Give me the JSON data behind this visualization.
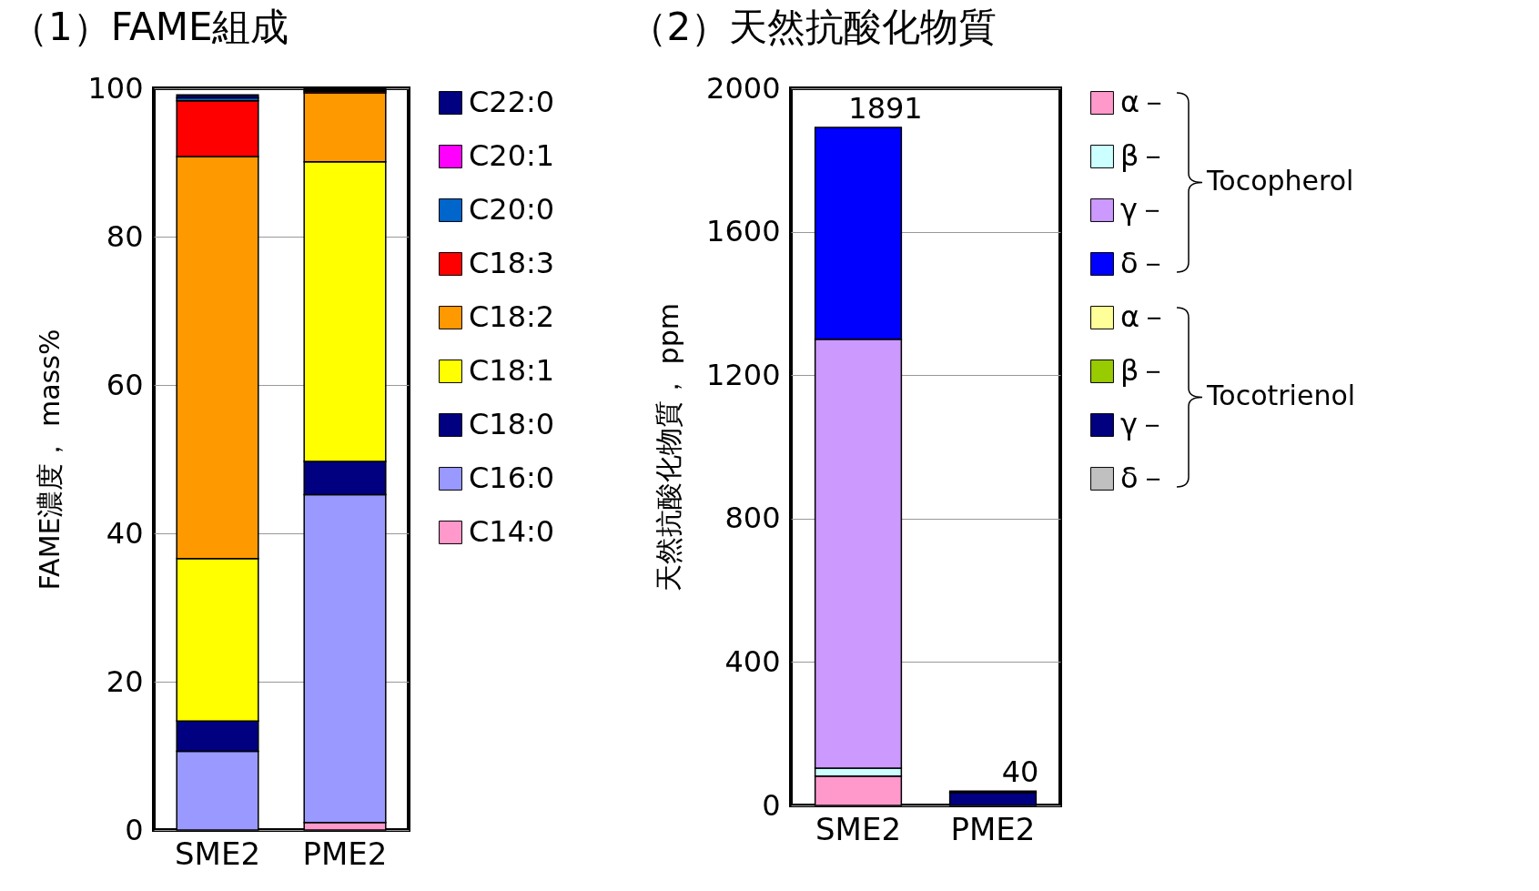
{
  "chart_data": [
    {
      "type": "bar",
      "title": "（1）FAME組成",
      "ylabel": "FAME濃度，  mass%",
      "categories": [
        "SME2",
        "PME2"
      ],
      "stacked": true,
      "ylim": [
        0,
        100
      ],
      "yticks": [
        0,
        20,
        40,
        60,
        80,
        100
      ],
      "grid": "y",
      "legend": "right",
      "series": [
        {
          "name": "C14:0",
          "color": "#ff99cc",
          "values": [
            0,
            1.0
          ]
        },
        {
          "name": "C16:0",
          "color": "#9999ff",
          "values": [
            10.6,
            44.2
          ]
        },
        {
          "name": "C18:0",
          "color": "#000080",
          "values": [
            4.1,
            4.5
          ]
        },
        {
          "name": "C18:1",
          "color": "#ffff00",
          "values": [
            21.9,
            40.4
          ]
        },
        {
          "name": "C18:2",
          "color": "#ff9900",
          "values": [
            54.2,
            9.3
          ]
        },
        {
          "name": "C18:3",
          "color": "#ff0000",
          "values": [
            7.5,
            0.2
          ]
        },
        {
          "name": "C20:0",
          "color": "#0066cc",
          "values": [
            0.4,
            0.2
          ]
        },
        {
          "name": "C20:1",
          "color": "#ff00ff",
          "values": [
            null,
            0
          ]
        },
        {
          "name": "C22:0",
          "color": "#000080",
          "values": [
            0.4,
            0.1
          ]
        }
      ]
    },
    {
      "type": "bar",
      "title": "（2）天然抗酸化物質",
      "ylabel": "天然抗酸化物質，  ppm",
      "categories": [
        "SME2",
        "PME2"
      ],
      "stacked": true,
      "ylim": [
        0,
        2000
      ],
      "yticks": [
        0,
        400,
        800,
        1200,
        1600,
        2000
      ],
      "grid": "y",
      "legend": "right",
      "totals": [
        "1891",
        "40"
      ],
      "annotations": [
        "Tocopherol",
        "Tocotrienol"
      ],
      "series": [
        {
          "name": "α－",
          "color": "#ff99cc",
          "values": [
            82,
            0
          ]
        },
        {
          "name": "β－",
          "color": "#ccffff",
          "values": [
            22,
            0
          ]
        },
        {
          "name": "γ－",
          "color": "#cc99ff",
          "values": [
            1196,
            0
          ]
        },
        {
          "name": "δ－",
          "color": "#0000ff",
          "values": [
            591,
            0
          ]
        },
        {
          "name": "α－",
          "color": "#ffff99",
          "values": [
            0,
            0
          ]
        },
        {
          "name": "β－",
          "color": "#99cc00",
          "values": [
            0,
            0
          ]
        },
        {
          "name": "γ－",
          "color": "#000080",
          "values": [
            0,
            36
          ]
        },
        {
          "name": "δ－",
          "color": "#c0c0c0",
          "values": [
            0,
            4
          ]
        }
      ]
    }
  ]
}
